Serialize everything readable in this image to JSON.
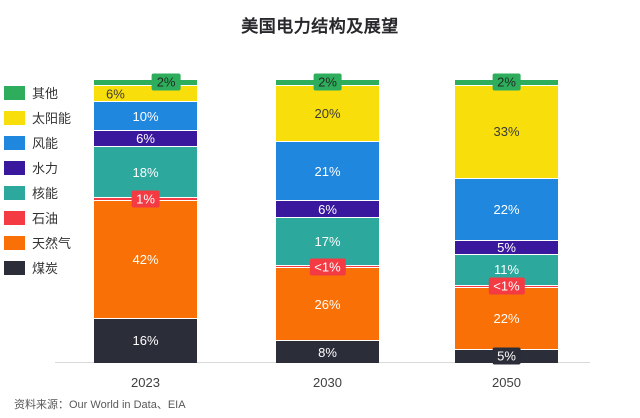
{
  "title": "美国电力结构及展望",
  "source": "资料来源：Our World in Data、EIA",
  "colors": {
    "other": "#2ead5c",
    "solar": "#f8df0b",
    "wind": "#1f87dd",
    "hydro": "#39189d",
    "nuclear": "#2ca89d",
    "oil": "#f43b43",
    "gas": "#f97106",
    "coal": "#2b2d38",
    "axis_line": "#d9d9d9",
    "tick_text": "#404040",
    "source_text": "#595959"
  },
  "legend": [
    {
      "label": "其他",
      "color": "#2ead5c"
    },
    {
      "label": "太阳能",
      "color": "#f8df0b"
    },
    {
      "label": "风能",
      "color": "#1f87dd"
    },
    {
      "label": "水力",
      "color": "#39189d"
    },
    {
      "label": "核能",
      "color": "#2ca89d"
    },
    {
      "label": "石油",
      "color": "#f43b43"
    },
    {
      "label": "天然气",
      "color": "#f97106"
    },
    {
      "label": "煤炭",
      "color": "#2b2d38"
    }
  ],
  "chart_data": {
    "type": "bar",
    "stacked": true,
    "percent": true,
    "title": "美国电力结构及展望",
    "categories": [
      "2023",
      "2030",
      "2050"
    ],
    "series": [
      {
        "name": "煤炭",
        "color": "#2b2d38",
        "label_color": "#ffffff",
        "values": [
          16,
          8,
          5
        ],
        "labels": [
          "16%",
          "8%",
          "5%"
        ]
      },
      {
        "name": "天然气",
        "color": "#f97106",
        "label_color": "#ffffff",
        "values": [
          42,
          26,
          22
        ],
        "labels": [
          "42%",
          "26%",
          "22%"
        ]
      },
      {
        "name": "石油",
        "color": "#f43b43",
        "label_color": "#ffffff",
        "values": [
          1,
          0.7,
          0.7
        ],
        "labels": [
          "1%",
          "<1%",
          "<1%"
        ]
      },
      {
        "name": "核能",
        "color": "#2ca89d",
        "label_color": "#ffffff",
        "values": [
          18,
          17,
          11
        ],
        "labels": [
          "18%",
          "17%",
          "11%"
        ]
      },
      {
        "name": "水力",
        "color": "#39189d",
        "label_color": "#ffffff",
        "values": [
          6,
          6,
          5
        ],
        "labels": [
          "6%",
          "6%",
          "5%"
        ]
      },
      {
        "name": "风能",
        "color": "#1f87dd",
        "label_color": "#ffffff",
        "values": [
          10,
          21,
          22
        ],
        "labels": [
          "10%",
          "21%",
          "22%"
        ]
      },
      {
        "name": "太阳能",
        "color": "#f8df0b",
        "label_color": "#3a3a3a",
        "values": [
          6,
          20,
          33
        ],
        "labels": [
          "6%",
          "20%",
          "33%"
        ]
      },
      {
        "name": "其他",
        "color": "#2ead5c",
        "label_color": "#1f2b22",
        "values": [
          2,
          2,
          2
        ],
        "labels": [
          "2%",
          "2%",
          "2%"
        ]
      }
    ],
    "legend_position": "left",
    "x_tick_labels": [
      "2023",
      "2030",
      "2050"
    ],
    "source": "资料来源：Our World in Data、EIA"
  },
  "label_presentation": {
    "badge_series": [
      "石油",
      "其他"
    ],
    "badge_cells": [
      {
        "category": "2050",
        "series": "煤炭"
      }
    ],
    "left_align_cells": [
      {
        "category": "2023",
        "series": "太阳能"
      }
    ],
    "offset_right_cells": [
      {
        "category": "2023",
        "series": "其他"
      }
    ]
  }
}
